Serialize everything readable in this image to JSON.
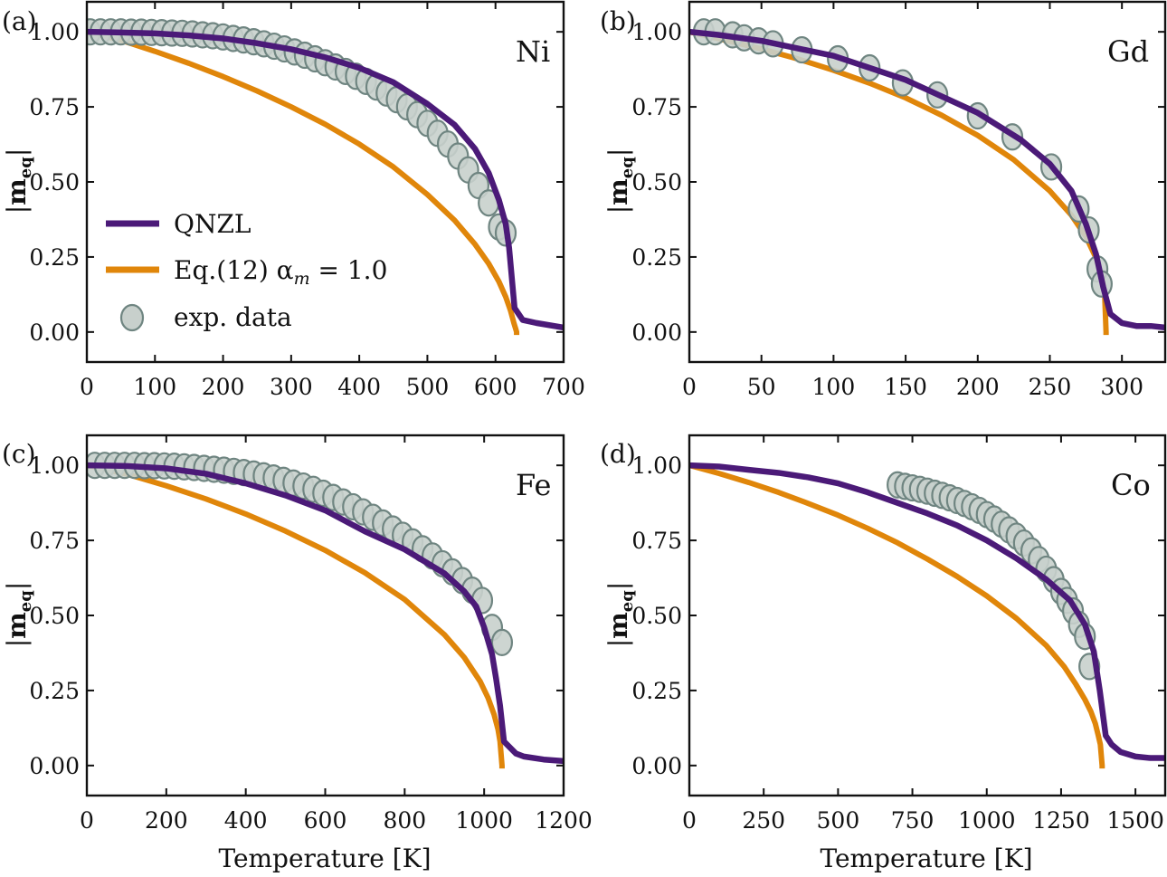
{
  "chart_data": [
    {
      "type": "line",
      "panel": "(a)",
      "element": "Ni",
      "xlabel": "",
      "ylabel": "|m_eq|",
      "xlim": [
        0,
        700
      ],
      "ylim": [
        -0.1,
        1.1
      ],
      "xticks": [
        0,
        100,
        200,
        300,
        400,
        500,
        600,
        700
      ],
      "yticks": [
        0.0,
        0.25,
        0.5,
        0.75,
        1.0
      ],
      "ytick_labels": [
        "0.00",
        "0.25",
        "0.50",
        "0.75",
        "1.00"
      ],
      "Tc": 631,
      "series": [
        {
          "name": "QNZL",
          "color": "#4b1a78",
          "x": [
            0,
            50,
            100,
            150,
            200,
            250,
            300,
            350,
            400,
            450,
            500,
            540,
            570,
            590,
            605,
            615,
            620,
            628,
            640,
            660,
            700
          ],
          "values": [
            1.0,
            0.998,
            0.995,
            0.988,
            0.978,
            0.962,
            0.942,
            0.915,
            0.88,
            0.832,
            0.76,
            0.69,
            0.61,
            0.53,
            0.44,
            0.36,
            0.28,
            0.08,
            0.04,
            0.03,
            0.015
          ]
        },
        {
          "name": "Eq.(12)",
          "color": "#e0860a",
          "x": [
            0,
            50,
            100,
            150,
            200,
            250,
            300,
            350,
            400,
            450,
            500,
            540,
            570,
            590,
            605,
            615,
            622,
            627,
            630,
            631
          ],
          "values": [
            1.0,
            0.972,
            0.935,
            0.895,
            0.851,
            0.803,
            0.75,
            0.692,
            0.626,
            0.55,
            0.458,
            0.372,
            0.292,
            0.228,
            0.168,
            0.117,
            0.072,
            0.03,
            0.008,
            0.0
          ]
        },
        {
          "name": "exp. data",
          "color": "#c8d0cc",
          "x": [
            5,
            20,
            35,
            50,
            65,
            80,
            95,
            110,
            125,
            140,
            155,
            170,
            185,
            200,
            215,
            230,
            245,
            260,
            275,
            290,
            305,
            320,
            335,
            350,
            365,
            380,
            395,
            410,
            425,
            440,
            455,
            470,
            485,
            500,
            515,
            530,
            545,
            560,
            575,
            590,
            605,
            615
          ],
          "values": [
            1.0,
            1.0,
            1.0,
            1.0,
            0.999,
            0.999,
            0.998,
            0.997,
            0.996,
            0.995,
            0.993,
            0.99,
            0.987,
            0.983,
            0.978,
            0.973,
            0.967,
            0.96,
            0.952,
            0.943,
            0.933,
            0.922,
            0.91,
            0.897,
            0.883,
            0.868,
            0.852,
            0.835,
            0.816,
            0.796,
            0.774,
            0.75,
            0.724,
            0.695,
            0.662,
            0.626,
            0.586,
            0.54,
            0.488,
            0.43,
            0.35,
            0.33
          ]
        }
      ]
    },
    {
      "type": "line",
      "panel": "(b)",
      "element": "Gd",
      "xlabel": "",
      "ylabel": "|m_eq|",
      "xlim": [
        0,
        330
      ],
      "ylim": [
        -0.1,
        1.1
      ],
      "xticks": [
        0,
        50,
        100,
        150,
        200,
        250,
        300
      ],
      "yticks": [
        0.0,
        0.25,
        0.5,
        0.75,
        1.0
      ],
      "ytick_labels": [
        "0.00",
        "0.25",
        "0.50",
        "0.75",
        "1.00"
      ],
      "Tc": 289,
      "series": [
        {
          "name": "QNZL",
          "color": "#4b1a78",
          "x": [
            0,
            20,
            50,
            100,
            150,
            200,
            230,
            250,
            265,
            275,
            282,
            287,
            292,
            300,
            310,
            320,
            330
          ],
          "values": [
            1.0,
            0.99,
            0.97,
            0.92,
            0.84,
            0.73,
            0.64,
            0.56,
            0.47,
            0.36,
            0.26,
            0.15,
            0.06,
            0.03,
            0.02,
            0.02,
            0.015
          ]
        },
        {
          "name": "Eq.(12)",
          "color": "#e0860a",
          "x": [
            0,
            25,
            50,
            75,
            100,
            125,
            150,
            175,
            200,
            225,
            250,
            265,
            275,
            282,
            286,
            288,
            289
          ],
          "values": [
            1.0,
            0.972,
            0.943,
            0.91,
            0.872,
            0.829,
            0.78,
            0.722,
            0.655,
            0.574,
            0.47,
            0.389,
            0.318,
            0.247,
            0.183,
            0.13,
            0.0
          ]
        },
        {
          "name": "exp. data",
          "color": "#c8d0cc",
          "x": [
            10,
            18,
            30,
            38,
            48,
            58,
            78,
            103,
            125,
            148,
            172,
            200,
            224,
            251,
            270,
            277,
            283,
            286
          ],
          "values": [
            1.0,
            1.0,
            0.99,
            0.98,
            0.97,
            0.96,
            0.94,
            0.91,
            0.88,
            0.83,
            0.79,
            0.72,
            0.65,
            0.55,
            0.41,
            0.34,
            0.21,
            0.16
          ]
        }
      ]
    },
    {
      "type": "line",
      "panel": "(c)",
      "element": "Fe",
      "xlabel": "",
      "ylabel": "|m_eq|",
      "xlim": [
        0,
        1200
      ],
      "ylim": [
        -0.1,
        1.1
      ],
      "xticks": [
        0,
        200,
        400,
        600,
        800,
        1000,
        1200
      ],
      "yticks": [
        0.0,
        0.25,
        0.5,
        0.75,
        1.0
      ],
      "ytick_labels": [
        "0.00",
        "0.25",
        "0.50",
        "0.75",
        "1.00"
      ],
      "Tc": 1045,
      "series": [
        {
          "name": "QNZL",
          "color": "#4b1a78",
          "x": [
            0,
            100,
            200,
            300,
            400,
            500,
            600,
            700,
            800,
            900,
            950,
            980,
            1000,
            1020,
            1030,
            1040,
            1050,
            1065,
            1080,
            1100,
            1150,
            1200
          ],
          "values": [
            1.0,
            0.998,
            0.99,
            0.972,
            0.94,
            0.9,
            0.85,
            0.78,
            0.72,
            0.64,
            0.58,
            0.53,
            0.46,
            0.37,
            0.29,
            0.2,
            0.08,
            0.06,
            0.04,
            0.03,
            0.02,
            0.015
          ]
        },
        {
          "name": "Eq.(12)",
          "color": "#e0860a",
          "x": [
            0,
            100,
            200,
            300,
            400,
            500,
            600,
            700,
            800,
            900,
            950,
            990,
            1010,
            1025,
            1035,
            1040,
            1045
          ],
          "values": [
            1.0,
            0.971,
            0.932,
            0.888,
            0.838,
            0.781,
            0.717,
            0.642,
            0.553,
            0.436,
            0.36,
            0.28,
            0.225,
            0.17,
            0.12,
            0.08,
            0.0
          ]
        },
        {
          "name": "exp. data",
          "color": "#c8d0cc",
          "x": [
            20,
            45,
            70,
            95,
            120,
            145,
            170,
            195,
            220,
            245,
            270,
            295,
            320,
            345,
            370,
            395,
            420,
            445,
            470,
            495,
            520,
            545,
            570,
            595,
            620,
            645,
            670,
            695,
            720,
            745,
            770,
            795,
            820,
            845,
            870,
            895,
            920,
            945,
            970,
            995,
            1020,
            1045
          ],
          "values": [
            1.0,
            1.0,
            1.0,
            1.0,
            1.0,
            0.999,
            0.999,
            0.998,
            0.997,
            0.995,
            0.993,
            0.99,
            0.987,
            0.984,
            0.98,
            0.976,
            0.971,
            0.965,
            0.958,
            0.95,
            0.941,
            0.931,
            0.92,
            0.907,
            0.893,
            0.878,
            0.862,
            0.845,
            0.827,
            0.808,
            0.788,
            0.767,
            0.745,
            0.722,
            0.698,
            0.672,
            0.645,
            0.616,
            0.584,
            0.55,
            0.46,
            0.41
          ]
        }
      ]
    },
    {
      "type": "line",
      "panel": "(d)",
      "element": "Co",
      "xlabel": "Temperature [K]",
      "ylabel": "|m_eq|",
      "xlim": [
        0,
        1600
      ],
      "ylim": [
        -0.1,
        1.1
      ],
      "xticks": [
        0,
        250,
        500,
        750,
        1000,
        1250,
        1500
      ],
      "yticks": [
        0.0,
        0.25,
        0.5,
        0.75,
        1.0
      ],
      "ytick_labels": [
        "0.00",
        "0.25",
        "0.50",
        "0.75",
        "1.00"
      ],
      "Tc": 1388,
      "series": [
        {
          "name": "QNZL",
          "color": "#4b1a78",
          "x": [
            0,
            100,
            200,
            300,
            400,
            500,
            600,
            700,
            800,
            900,
            1000,
            1100,
            1200,
            1280,
            1330,
            1360,
            1380,
            1400,
            1420,
            1450,
            1500,
            1550,
            1600
          ],
          "values": [
            1.0,
            0.996,
            0.985,
            0.975,
            0.96,
            0.94,
            0.91,
            0.875,
            0.84,
            0.8,
            0.75,
            0.69,
            0.62,
            0.55,
            0.47,
            0.38,
            0.25,
            0.1,
            0.07,
            0.045,
            0.03,
            0.025,
            0.025
          ]
        },
        {
          "name": "Eq.(12)",
          "color": "#e0860a",
          "x": [
            0,
            100,
            200,
            300,
            400,
            500,
            600,
            700,
            800,
            900,
            1000,
            1100,
            1200,
            1260,
            1300,
            1330,
            1350,
            1365,
            1375,
            1382,
            1388
          ],
          "values": [
            1.0,
            0.973,
            0.943,
            0.91,
            0.873,
            0.834,
            0.79,
            0.742,
            0.688,
            0.63,
            0.565,
            0.49,
            0.4,
            0.33,
            0.27,
            0.22,
            0.18,
            0.14,
            0.1,
            0.07,
            0.0
          ]
        },
        {
          "name": "exp. data",
          "color": "#c8d0cc",
          "x": [
            700,
            725,
            750,
            775,
            800,
            825,
            850,
            875,
            900,
            925,
            950,
            975,
            1000,
            1025,
            1050,
            1075,
            1100,
            1125,
            1150,
            1175,
            1200,
            1225,
            1250,
            1270,
            1290,
            1310,
            1330,
            1345
          ],
          "values": [
            0.935,
            0.93,
            0.925,
            0.92,
            0.914,
            0.907,
            0.9,
            0.892,
            0.883,
            0.873,
            0.862,
            0.85,
            0.836,
            0.821,
            0.804,
            0.785,
            0.764,
            0.741,
            0.715,
            0.686,
            0.654,
            0.619,
            0.58,
            0.55,
            0.515,
            0.47,
            0.43,
            0.33
          ]
        }
      ]
    }
  ],
  "legend": {
    "entries": [
      {
        "label": "QNZL",
        "color": "#4b1a78",
        "kind": "line"
      },
      {
        "label": "Eq.(12) α",
        "subscript": "m",
        "suffix": " = 1.0",
        "color": "#e0860a",
        "kind": "line"
      },
      {
        "label": "exp. data",
        "color": "#c8d0cc",
        "kind": "marker"
      }
    ],
    "placement": "lower-left of panel (a)"
  },
  "styles": {
    "qnzl_color": "#4b1a78",
    "eq12_color": "#e0860a",
    "exp_fill": "#c8d0cc",
    "exp_stroke": "#6f8581"
  }
}
